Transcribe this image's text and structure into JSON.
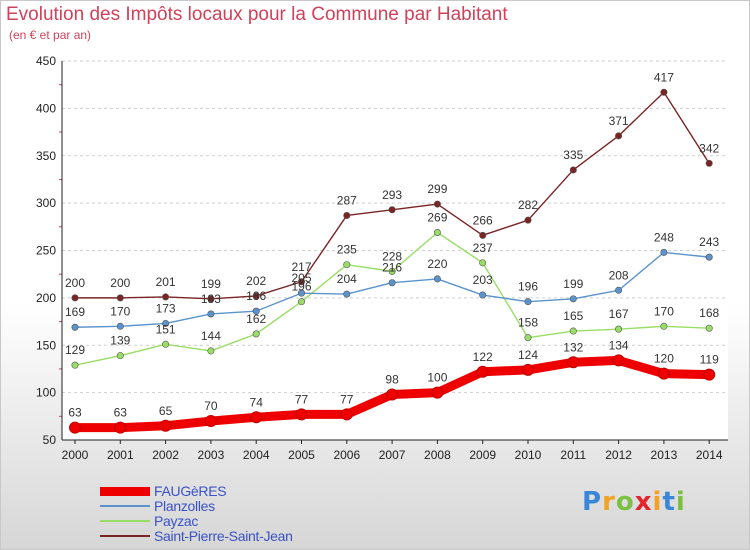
{
  "chart_data": {
    "type": "line",
    "title": "Evolution des Impôts locaux pour la Commune par Habitant",
    "subtitle": "(en € et par an)",
    "xlabel": "",
    "ylabel": "",
    "ylim": [
      50,
      450
    ],
    "yticks": [
      "50",
      "100",
      "150",
      "200",
      "250",
      "300",
      "350",
      "400",
      "450"
    ],
    "categories": [
      "2000",
      "2001",
      "2002",
      "2003",
      "2004",
      "2005",
      "2006",
      "2007",
      "2008",
      "2009",
      "2010",
      "2011",
      "2012",
      "2013",
      "2014"
    ],
    "legend_position": "bottom-left",
    "grid": "dashed horizontal",
    "series": [
      {
        "name": "FAUGèRES",
        "color": "#ee0000",
        "values": [
          63,
          63,
          65,
          70,
          74,
          77,
          77,
          98,
          100,
          122,
          124,
          132,
          134,
          120,
          119
        ],
        "labels": [
          "63",
          "63",
          "65",
          "70",
          "74",
          "77",
          "77",
          "98",
          "100",
          "122",
          "124",
          "132",
          "134",
          "120",
          "119"
        ]
      },
      {
        "name": "Planzolles",
        "color": "#5b94cc",
        "values": [
          169,
          170,
          173,
          183,
          186,
          205,
          204,
          216,
          220,
          203,
          196,
          199,
          208,
          248,
          243
        ],
        "labels": [
          "169",
          "170",
          "173",
          "183",
          "186",
          "205",
          "204",
          "216",
          "220",
          "203",
          "196",
          "199",
          "208",
          "248",
          "243"
        ]
      },
      {
        "name": "Payzac",
        "color": "#99dd66",
        "values": [
          129,
          139,
          151,
          144,
          162,
          196,
          235,
          228,
          269,
          237,
          158,
          165,
          167,
          170,
          168
        ],
        "labels": [
          "129",
          "139",
          "151",
          "144",
          "162",
          "196",
          "235",
          "228",
          "269",
          "237",
          "158",
          "165",
          "167",
          "170",
          "168"
        ]
      },
      {
        "name": "Saint-Pierre-Saint-Jean",
        "color": "#7a2424",
        "values": [
          200,
          200,
          201,
          199,
          202,
          217,
          287,
          293,
          299,
          266,
          282,
          335,
          371,
          417,
          342
        ],
        "labels": [
          "200",
          "200",
          "201",
          "199",
          "202",
          "217",
          "287",
          "293",
          "299",
          "266",
          "282",
          "335",
          "371",
          "417",
          "342"
        ]
      }
    ]
  },
  "brand": {
    "letters": [
      "P",
      "r",
      "o",
      "x",
      "i",
      "t",
      "i"
    ],
    "colors": [
      "#3b86d6",
      "#f2a224",
      "#7cc043",
      "#e2252b",
      "#f2a224",
      "#3b86d6",
      "#7cc043"
    ]
  }
}
